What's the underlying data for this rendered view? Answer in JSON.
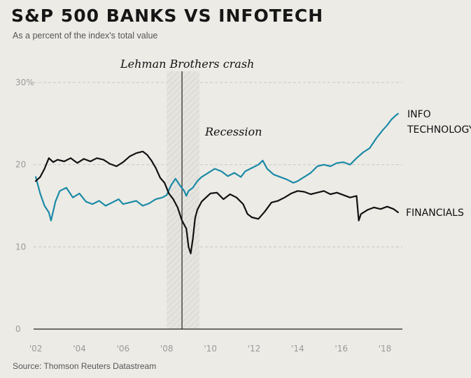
{
  "title": "S&P 500 BANKS VS INFOTECH",
  "subtitle": "As a percent of the index's total value",
  "source": "Source: Thomson Reuters Datastream",
  "chart_data": {
    "type": "line",
    "title": "S&P 500 BANKS VS INFOTECH",
    "subtitle": "As a percent of the index's total value",
    "xlabel": "",
    "ylabel": "",
    "xlim": [
      2001.9,
      2018.8
    ],
    "ylim": [
      0,
      30
    ],
    "y_ticks": [
      0,
      10,
      20,
      30
    ],
    "y_tick_labels": [
      "0",
      "10",
      "20",
      "30%"
    ],
    "x_ticks": [
      2002,
      2004,
      2006,
      2008,
      2010,
      2012,
      2014,
      2016,
      2018
    ],
    "x_tick_labels": [
      "'02",
      "'04",
      "'06",
      "'08",
      "'10",
      "'12",
      "'14",
      "'16",
      "'18"
    ],
    "grid": true,
    "recession": {
      "start": 2008.0,
      "end": 2009.5,
      "label": "Recession"
    },
    "event": {
      "x": 2008.7,
      "label": "Lehman Brothers crash"
    },
    "series": [
      {
        "name": "INFO TECHNOLOGY",
        "label_lines": [
          "INFO",
          "TECHNOLOGY"
        ],
        "color": "#1c8aa6",
        "x": [
          2002.0,
          2002.2,
          2002.4,
          2002.6,
          2002.7,
          2002.9,
          2003.1,
          2003.4,
          2003.7,
          2004.0,
          2004.3,
          2004.6,
          2004.9,
          2005.2,
          2005.5,
          2005.8,
          2006.0,
          2006.3,
          2006.6,
          2006.9,
          2007.2,
          2007.5,
          2007.8,
          2008.0,
          2008.2,
          2008.4,
          2008.6,
          2008.8,
          2008.9,
          2009.0,
          2009.2,
          2009.4,
          2009.6,
          2009.9,
          2010.2,
          2010.5,
          2010.8,
          2011.1,
          2011.4,
          2011.6,
          2011.9,
          2012.2,
          2012.4,
          2012.6,
          2012.9,
          2013.2,
          2013.5,
          2013.8,
          2014.0,
          2014.3,
          2014.6,
          2014.9,
          2015.2,
          2015.5,
          2015.8,
          2016.1,
          2016.4,
          2016.7,
          2017.0,
          2017.3,
          2017.6,
          2017.9,
          2018.1,
          2018.3,
          2018.5,
          2018.6
        ],
        "y": [
          18.5,
          16.5,
          15.0,
          14.2,
          13.2,
          15.5,
          16.8,
          17.2,
          16.0,
          16.5,
          15.5,
          15.2,
          15.6,
          15.0,
          15.4,
          15.8,
          15.2,
          15.4,
          15.6,
          15.0,
          15.3,
          15.8,
          16.0,
          16.3,
          17.5,
          18.3,
          17.5,
          16.8,
          16.2,
          16.8,
          17.2,
          18.0,
          18.5,
          19.0,
          19.5,
          19.2,
          18.6,
          19.0,
          18.5,
          19.2,
          19.6,
          20.0,
          20.5,
          19.5,
          18.8,
          18.5,
          18.2,
          17.8,
          18.0,
          18.5,
          19.0,
          19.8,
          20.0,
          19.8,
          20.2,
          20.3,
          20.0,
          20.8,
          21.5,
          22.0,
          23.2,
          24.2,
          24.8,
          25.5,
          26.0,
          26.2
        ]
      },
      {
        "name": "FINANCIALS",
        "label_lines": [
          "FINANCIALS"
        ],
        "color": "#111111",
        "x": [
          2002.0,
          2002.2,
          2002.4,
          2002.6,
          2002.8,
          2003.0,
          2003.3,
          2003.6,
          2003.9,
          2004.2,
          2004.5,
          2004.8,
          2005.1,
          2005.4,
          2005.7,
          2006.0,
          2006.3,
          2006.6,
          2006.9,
          2007.1,
          2007.3,
          2007.5,
          2007.7,
          2007.9,
          2008.1,
          2008.3,
          2008.5,
          2008.7,
          2008.9,
          2009.0,
          2009.1,
          2009.2,
          2009.3,
          2009.4,
          2009.6,
          2009.8,
          2010.0,
          2010.3,
          2010.6,
          2010.9,
          2011.2,
          2011.5,
          2011.7,
          2011.9,
          2012.2,
          2012.5,
          2012.8,
          2013.1,
          2013.4,
          2013.7,
          2014.0,
          2014.3,
          2014.6,
          2014.9,
          2015.2,
          2015.5,
          2015.8,
          2016.1,
          2016.4,
          2016.7,
          2016.8,
          2016.9,
          2017.2,
          2017.5,
          2017.8,
          2018.1,
          2018.4,
          2018.6
        ],
        "y": [
          18.0,
          18.5,
          19.5,
          20.8,
          20.3,
          20.6,
          20.4,
          20.8,
          20.2,
          20.7,
          20.4,
          20.8,
          20.6,
          20.1,
          19.8,
          20.3,
          21.0,
          21.4,
          21.6,
          21.2,
          20.5,
          19.6,
          18.4,
          17.8,
          16.5,
          15.8,
          14.8,
          13.2,
          12.2,
          10.0,
          9.2,
          11.0,
          13.5,
          14.5,
          15.5,
          16.0,
          16.5,
          16.6,
          15.8,
          16.4,
          16.0,
          15.2,
          14.0,
          13.6,
          13.4,
          14.3,
          15.4,
          15.6,
          16.0,
          16.5,
          16.8,
          16.7,
          16.4,
          16.6,
          16.8,
          16.4,
          16.6,
          16.3,
          16.0,
          16.2,
          13.2,
          14.0,
          14.5,
          14.8,
          14.6,
          14.9,
          14.6,
          14.2
        ]
      }
    ]
  }
}
